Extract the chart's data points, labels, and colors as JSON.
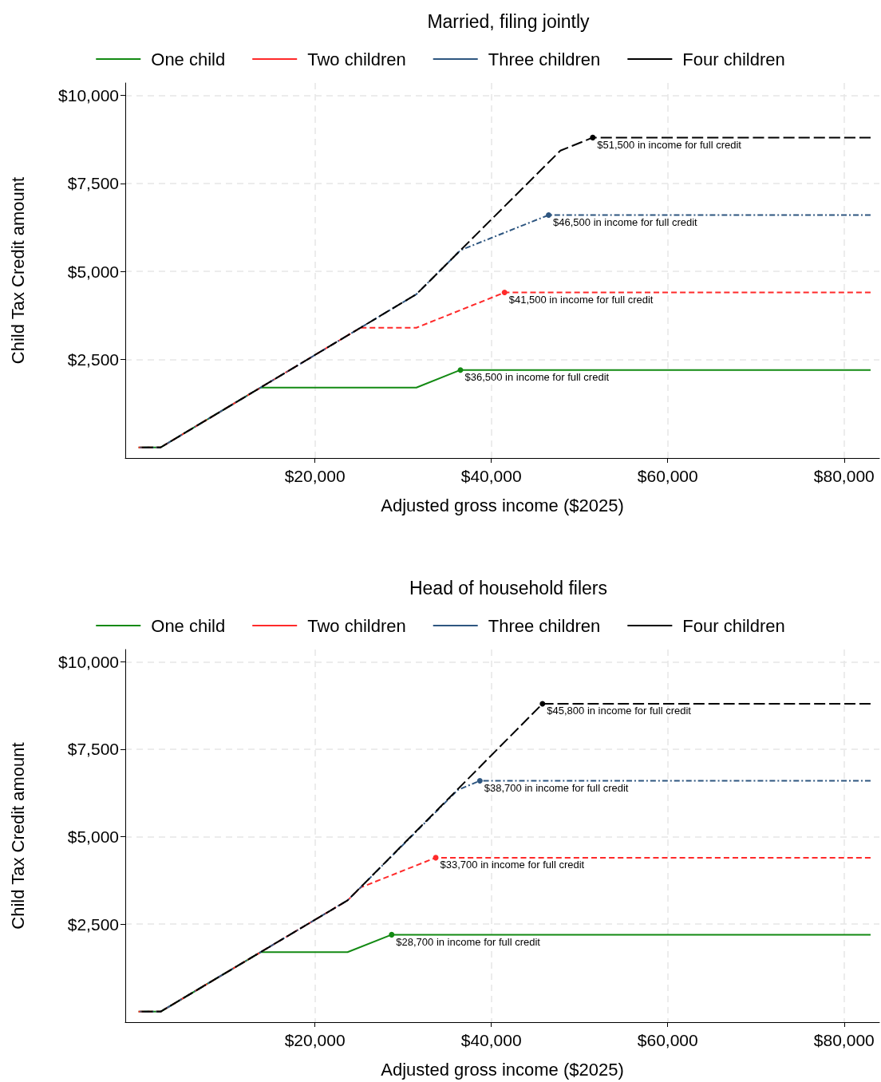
{
  "chart_data": [
    {
      "type": "line",
      "title": "Married, filing jointly",
      "xlabel": "Adjusted gross income ($2025)",
      "ylabel": "Child Tax Credit amount",
      "legend": "top",
      "grid": true,
      "xlim": [
        -1500,
        84000
      ],
      "ylim": [
        -300,
        10350
      ],
      "xticks": [
        {
          "value": 20000,
          "label": "$20,000"
        },
        {
          "value": 40000,
          "label": "$40,000"
        },
        {
          "value": 60000,
          "label": "$60,000"
        },
        {
          "value": 80000,
          "label": "$80,000"
        }
      ],
      "yticks": [
        {
          "value": 2500,
          "label": "$2,500"
        },
        {
          "value": 5000,
          "label": "$5,000"
        },
        {
          "value": 7500,
          "label": "$7,500"
        },
        {
          "value": 10000,
          "label": "$10,000"
        }
      ],
      "series": [
        {
          "name": "One child",
          "color": "#138a13",
          "line_style": "solid",
          "x": [
            0,
            2500,
            13833,
            31500,
            36500,
            83000
          ],
          "values": [
            0,
            0,
            1700,
            1700,
            2200,
            2200
          ]
        },
        {
          "name": "Two children",
          "color": "#ff2a2a",
          "line_style": "dashed",
          "x": [
            0,
            2500,
            25167,
            31500,
            41500,
            83000
          ],
          "values": [
            0,
            0,
            3400,
            3400,
            4400,
            4400
          ]
        },
        {
          "name": "Three children",
          "color": "#2e5680",
          "line_style": "dashdot",
          "x": [
            0,
            2500,
            31500,
            36500,
            46500,
            83000
          ],
          "values": [
            0,
            0,
            4350,
            5600,
            6600,
            6600
          ]
        },
        {
          "name": "Four children",
          "color": "#000000",
          "line_style": "longdash",
          "x": [
            0,
            2500,
            31500,
            47833,
            51500,
            83000
          ],
          "values": [
            0,
            0,
            4350,
            8430,
            8800,
            8800
          ]
        }
      ],
      "annotations": [
        {
          "text": "$36,500 in income for full credit",
          "x": 36500,
          "y": 2200
        },
        {
          "text": "$41,500 in income for full credit",
          "x": 41500,
          "y": 4400
        },
        {
          "text": "$46,500 in income for full credit",
          "x": 46500,
          "y": 6600
        },
        {
          "text": "$51,500 in income for full credit",
          "x": 51500,
          "y": 8800
        }
      ]
    },
    {
      "type": "line",
      "title": "Head of household filers",
      "xlabel": "Adjusted gross income ($2025)",
      "ylabel": "Child Tax Credit amount",
      "legend": "top",
      "grid": true,
      "xlim": [
        -1500,
        84000
      ],
      "ylim": [
        -300,
        10350
      ],
      "xticks": [
        {
          "value": 20000,
          "label": "$20,000"
        },
        {
          "value": 40000,
          "label": "$40,000"
        },
        {
          "value": 60000,
          "label": "$60,000"
        },
        {
          "value": 80000,
          "label": "$80,000"
        }
      ],
      "yticks": [
        {
          "value": 2500,
          "label": "$2,500"
        },
        {
          "value": 5000,
          "label": "$5,000"
        },
        {
          "value": 7500,
          "label": "$7,500"
        },
        {
          "value": 10000,
          "label": "$10,000"
        }
      ],
      "series": [
        {
          "name": "One child",
          "color": "#138a13",
          "line_style": "solid",
          "x": [
            0,
            2500,
            13833,
            23700,
            28700,
            83000
          ],
          "values": [
            0,
            0,
            1700,
            1700,
            2200,
            2200
          ]
        },
        {
          "name": "Two children",
          "color": "#ff2a2a",
          "line_style": "dashed",
          "x": [
            0,
            2500,
            23700,
            25200,
            33700,
            83000
          ],
          "values": [
            0,
            0,
            3180,
            3550,
            4400,
            4400
          ]
        },
        {
          "name": "Three children",
          "color": "#2e5680",
          "line_style": "dashdot",
          "x": [
            0,
            2500,
            23700,
            36170,
            38700,
            83000
          ],
          "values": [
            0,
            0,
            3180,
            6330,
            6600,
            6600
          ]
        },
        {
          "name": "Four children",
          "color": "#000000",
          "line_style": "longdash",
          "x": [
            0,
            2500,
            23700,
            45800,
            83000
          ],
          "values": [
            0,
            0,
            3180,
            8800,
            8800
          ]
        }
      ],
      "annotations": [
        {
          "text": "$28,700 in income for full credit",
          "x": 28700,
          "y": 2200
        },
        {
          "text": "$33,700 in income for full credit",
          "x": 33700,
          "y": 4400
        },
        {
          "text": "$38,700 in income for full credit",
          "x": 38700,
          "y": 6600
        },
        {
          "text": "$45,800 in income for full credit",
          "x": 45800,
          "y": 8800
        }
      ]
    }
  ]
}
